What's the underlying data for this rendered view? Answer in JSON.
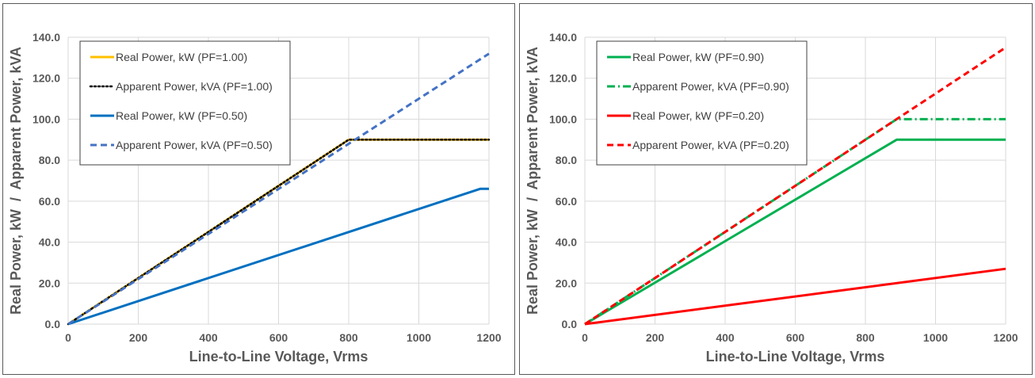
{
  "chart_data": [
    {
      "type": "line",
      "xlabel": "Line-to-Line Voltage, Vrms",
      "ylabel": "Real Power, kW  /  Apparent Power, kVA",
      "xlim": [
        0,
        1200
      ],
      "ylim": [
        0,
        140
      ],
      "x_ticks": [
        "0",
        "200",
        "400",
        "600",
        "800",
        "1000",
        "1200"
      ],
      "y_ticks": [
        "0.0",
        "20.0",
        "40.0",
        "60.0",
        "80.0",
        "100.0",
        "120.0",
        "140.0"
      ],
      "grid": true,
      "legend_position": "top-left",
      "series": [
        {
          "name": "Real Power, kW (PF=1.00)",
          "color": "#FFC000",
          "style": "solid",
          "points": [
            [
              0,
              0
            ],
            [
              800,
              90
            ],
            [
              1200,
              90
            ]
          ]
        },
        {
          "name": "Apparent Power, kVA (PF=1.00)",
          "color": "#000000",
          "style": "dotted",
          "points": [
            [
              0,
              0
            ],
            [
              800,
              90
            ],
            [
              1200,
              90
            ]
          ]
        },
        {
          "name": "Real Power, kW (PF=0.50)",
          "color": "#0070C0",
          "style": "solid",
          "points": [
            [
              0,
              0
            ],
            [
              1175,
              66
            ],
            [
              1200,
              66
            ]
          ]
        },
        {
          "name": "Apparent Power, kVA (PF=0.50)",
          "color": "#4472C4",
          "style": "dashed",
          "points": [
            [
              0,
              0
            ],
            [
              1200,
              132
            ]
          ]
        }
      ]
    },
    {
      "type": "line",
      "xlabel": "Line-to-Line Voltage, Vrms",
      "ylabel": "Real Power, kW  /  Apparent Power, kVA",
      "xlim": [
        0,
        1200
      ],
      "ylim": [
        0,
        140
      ],
      "x_ticks": [
        "0",
        "200",
        "400",
        "600",
        "800",
        "1000",
        "1200"
      ],
      "y_ticks": [
        "0.0",
        "20.0",
        "40.0",
        "60.0",
        "80.0",
        "100.0",
        "120.0",
        "140.0"
      ],
      "grid": true,
      "legend_position": "top-left",
      "series": [
        {
          "name": "Real Power, kW (PF=0.90)",
          "color": "#00B050",
          "style": "solid",
          "points": [
            [
              0,
              0
            ],
            [
              889,
              90
            ],
            [
              1200,
              90
            ]
          ]
        },
        {
          "name": "Apparent Power, kVA (PF=0.90)",
          "color": "#00B050",
          "style": "dashdot",
          "points": [
            [
              0,
              0
            ],
            [
              889,
              100
            ],
            [
              1200,
              100
            ]
          ]
        },
        {
          "name": "Real Power, kW (PF=0.20)",
          "color": "#FF0000",
          "style": "solid",
          "points": [
            [
              0,
              0
            ],
            [
              1200,
              27
            ]
          ]
        },
        {
          "name": "Apparent Power, kVA (PF=0.20)",
          "color": "#FF0000",
          "style": "dashed",
          "points": [
            [
              0,
              0
            ],
            [
              1200,
              135
            ]
          ]
        }
      ]
    }
  ]
}
